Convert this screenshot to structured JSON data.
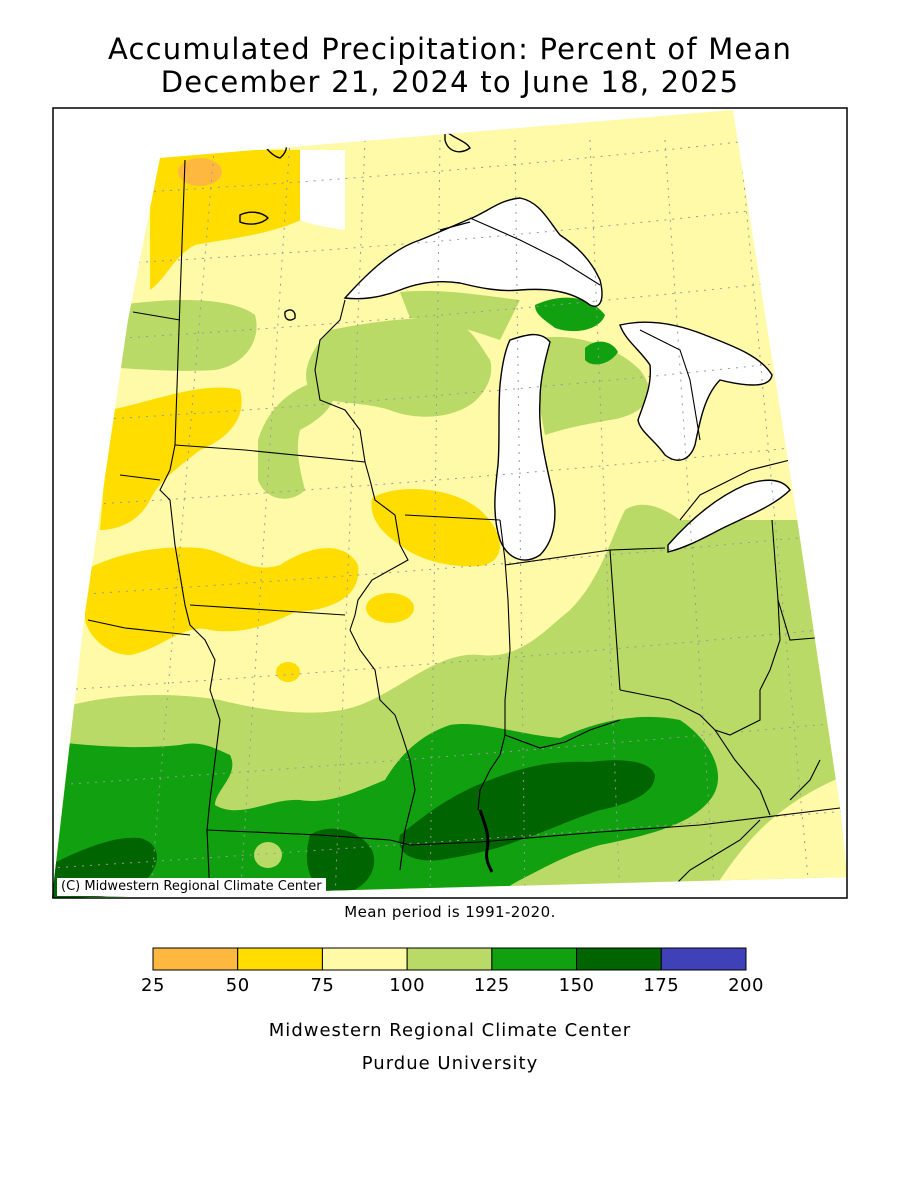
{
  "title_line1": "Accumulated Precipitation: Percent of Mean",
  "title_line2": "December 21, 2024 to June 18, 2025",
  "copyright": "(C) Midwestern Regional Climate Center",
  "mean_period_note": "Mean period is 1991-2020.",
  "legend": {
    "bins": [
      {
        "from": 25,
        "to": 50,
        "color": "#FFB83F"
      },
      {
        "from": 50,
        "to": 75,
        "color": "#FFDD00"
      },
      {
        "from": 75,
        "to": 100,
        "color": "#FFFAA8"
      },
      {
        "from": 100,
        "to": 125,
        "color": "#BADA67"
      },
      {
        "from": 125,
        "to": 150,
        "color": "#10A010"
      },
      {
        "from": 150,
        "to": 175,
        "color": "#006400"
      },
      {
        "from": 175,
        "to": 200,
        "color": "#4040B8"
      }
    ],
    "labels": [
      "25",
      "50",
      "75",
      "100",
      "125",
      "150",
      "175",
      "200"
    ]
  },
  "footer_line1": "Midwestern Regional Climate Center",
  "footer_line2": "Purdue University"
}
